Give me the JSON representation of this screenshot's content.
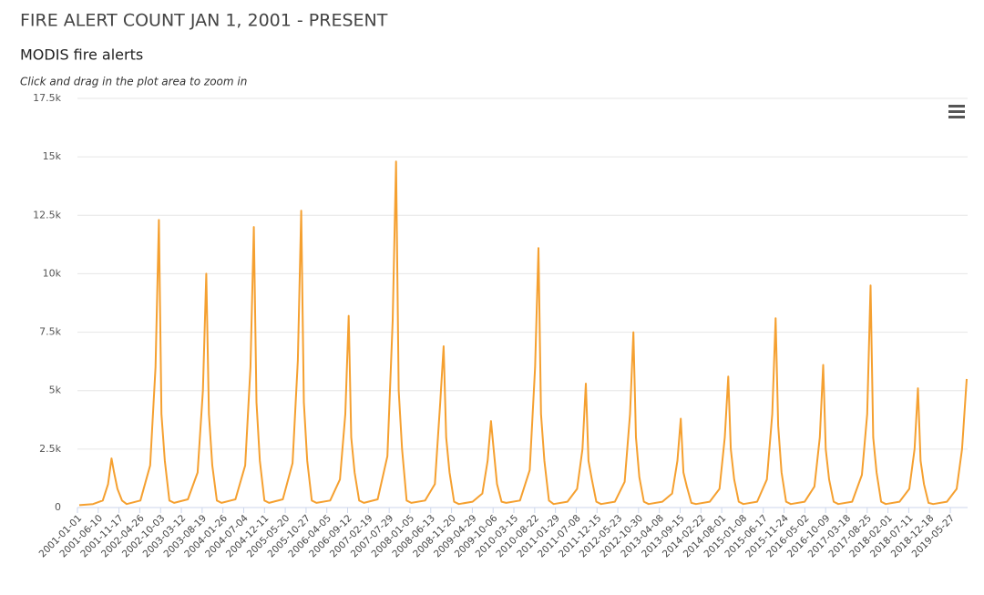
{
  "chart_data": {
    "type": "line",
    "title": "FIRE ALERT COUNT JAN 1, 2001 - PRESENT",
    "subtitle": "MODIS fire alerts",
    "annotation": "Click and drag in the plot area to zoom in",
    "series": [
      {
        "name": "MODIS fire alerts",
        "color": "#f5a030",
        "x": [
          "2001-01-15",
          "2001-05-01",
          "2001-07-15",
          "2001-08-25",
          "2001-09-20",
          "2001-10-10",
          "2001-11-05",
          "2001-12-10",
          "2002-01-15",
          "2002-05-01",
          "2002-07-15",
          "2002-08-25",
          "2002-09-20",
          "2002-10-10",
          "2002-11-05",
          "2002-12-10",
          "2003-01-15",
          "2003-05-01",
          "2003-07-15",
          "2003-08-25",
          "2003-09-20",
          "2003-10-10",
          "2003-11-05",
          "2003-12-10",
          "2004-01-15",
          "2004-05-01",
          "2004-07-15",
          "2004-08-25",
          "2004-09-20",
          "2004-10-10",
          "2004-11-05",
          "2004-12-10",
          "2005-01-15",
          "2005-05-01",
          "2005-07-15",
          "2005-08-25",
          "2005-09-20",
          "2005-10-10",
          "2005-11-05",
          "2005-12-10",
          "2006-01-15",
          "2006-05-01",
          "2006-07-15",
          "2006-08-25",
          "2006-09-20",
          "2006-10-10",
          "2006-11-05",
          "2006-12-10",
          "2007-01-15",
          "2007-05-01",
          "2007-07-15",
          "2007-08-25",
          "2007-09-20",
          "2007-10-10",
          "2007-11-05",
          "2007-12-10",
          "2008-01-15",
          "2008-05-01",
          "2008-07-15",
          "2008-08-25",
          "2008-09-20",
          "2008-10-10",
          "2008-11-05",
          "2008-12-10",
          "2009-01-15",
          "2009-05-01",
          "2009-07-15",
          "2009-08-25",
          "2009-09-20",
          "2009-10-10",
          "2009-11-05",
          "2009-12-10",
          "2010-01-15",
          "2010-05-01",
          "2010-07-15",
          "2010-08-25",
          "2010-09-20",
          "2010-10-10",
          "2010-11-05",
          "2010-12-10",
          "2011-01-15",
          "2011-05-01",
          "2011-07-15",
          "2011-08-25",
          "2011-09-20",
          "2011-10-10",
          "2011-11-05",
          "2011-12-10",
          "2012-01-15",
          "2012-05-01",
          "2012-07-15",
          "2012-08-25",
          "2012-09-20",
          "2012-10-10",
          "2012-11-05",
          "2012-12-10",
          "2013-01-15",
          "2013-05-01",
          "2013-07-15",
          "2013-08-25",
          "2013-09-20",
          "2013-10-10",
          "2013-11-05",
          "2013-12-10",
          "2014-01-15",
          "2014-05-01",
          "2014-07-15",
          "2014-08-25",
          "2014-09-20",
          "2014-10-10",
          "2014-11-05",
          "2014-12-10",
          "2015-01-15",
          "2015-05-01",
          "2015-07-15",
          "2015-08-25",
          "2015-09-20",
          "2015-10-10",
          "2015-11-05",
          "2015-12-10",
          "2016-01-15",
          "2016-05-01",
          "2016-07-15",
          "2016-08-25",
          "2016-09-20",
          "2016-10-10",
          "2016-11-05",
          "2016-12-10",
          "2017-01-15",
          "2017-05-01",
          "2017-07-15",
          "2017-08-25",
          "2017-09-20",
          "2017-10-10",
          "2017-11-05",
          "2017-12-10",
          "2018-01-15",
          "2018-05-01",
          "2018-07-15",
          "2018-08-25",
          "2018-09-20",
          "2018-10-10",
          "2018-11-05",
          "2018-12-10",
          "2019-01-15",
          "2019-05-01",
          "2019-07-15",
          "2019-08-25",
          "2019-09-30"
        ],
        "values": [
          100,
          150,
          300,
          1000,
          2100,
          1500,
          800,
          300,
          150,
          300,
          1800,
          6000,
          12300,
          4000,
          2000,
          300,
          200,
          350,
          1500,
          5000,
          10000,
          4000,
          1800,
          300,
          200,
          350,
          1800,
          6000,
          12000,
          4500,
          2000,
          300,
          200,
          350,
          1900,
          6300,
          12700,
          4500,
          2000,
          300,
          200,
          300,
          1200,
          4000,
          8200,
          3000,
          1500,
          300,
          200,
          350,
          2200,
          8000,
          14800,
          5000,
          2500,
          300,
          200,
          300,
          1000,
          4500,
          6900,
          3000,
          1500,
          250,
          150,
          250,
          600,
          2000,
          3700,
          2500,
          1000,
          250,
          200,
          300,
          1600,
          6000,
          11100,
          4000,
          2000,
          300,
          150,
          250,
          800,
          2500,
          5300,
          2000,
          1200,
          250,
          150,
          250,
          1100,
          4000,
          7500,
          3000,
          1300,
          250,
          150,
          250,
          600,
          2000,
          3800,
          1500,
          900,
          200,
          150,
          250,
          800,
          3000,
          5600,
          2500,
          1200,
          250,
          150,
          250,
          1200,
          4000,
          8100,
          3500,
          1500,
          250,
          150,
          250,
          900,
          3000,
          6100,
          2500,
          1200,
          250,
          150,
          250,
          1400,
          4000,
          9500,
          3000,
          1500,
          250,
          150,
          250,
          800,
          2500,
          5100,
          2000,
          1000,
          200,
          150,
          250,
          800,
          2500,
          5500
        ]
      }
    ],
    "xlim": [
      "2001-01-01",
      "2019-10-07"
    ],
    "xticks": [
      "2001-01-01",
      "2001-06-10",
      "2001-11-17",
      "2002-04-26",
      "2002-10-03",
      "2003-03-12",
      "2003-08-19",
      "2004-01-26",
      "2004-07-04",
      "2004-12-11",
      "2005-05-20",
      "2005-10-27",
      "2006-04-05",
      "2006-09-12",
      "2007-02-19",
      "2007-07-29",
      "2008-01-05",
      "2008-06-13",
      "2008-11-20",
      "2009-04-29",
      "2009-10-06",
      "2010-03-15",
      "2010-08-22",
      "2011-01-29",
      "2011-07-08",
      "2011-12-15",
      "2012-05-23",
      "2012-10-30",
      "2013-04-08",
      "2013-09-15",
      "2014-02-22",
      "2014-08-01",
      "2015-01-08",
      "2015-06-17",
      "2015-11-24",
      "2016-05-02",
      "2016-10-09",
      "2017-03-18",
      "2017-08-25",
      "2018-02-01",
      "2018-07-11",
      "2018-12-18",
      "2019-05-27"
    ],
    "ylim": [
      0,
      17500
    ],
    "yticks": [
      0,
      {
        "value": 2500,
        "label": "2.5k"
      },
      {
        "value": 5000,
        "label": "5k"
      },
      {
        "value": 7500,
        "label": "7.5k"
      },
      {
        "value": 10000,
        "label": "10k"
      },
      {
        "value": 12500,
        "label": "12.5k"
      },
      {
        "value": 15000,
        "label": "15k"
      },
      {
        "value": 17500,
        "label": "17.5k"
      }
    ],
    "grid": true
  }
}
